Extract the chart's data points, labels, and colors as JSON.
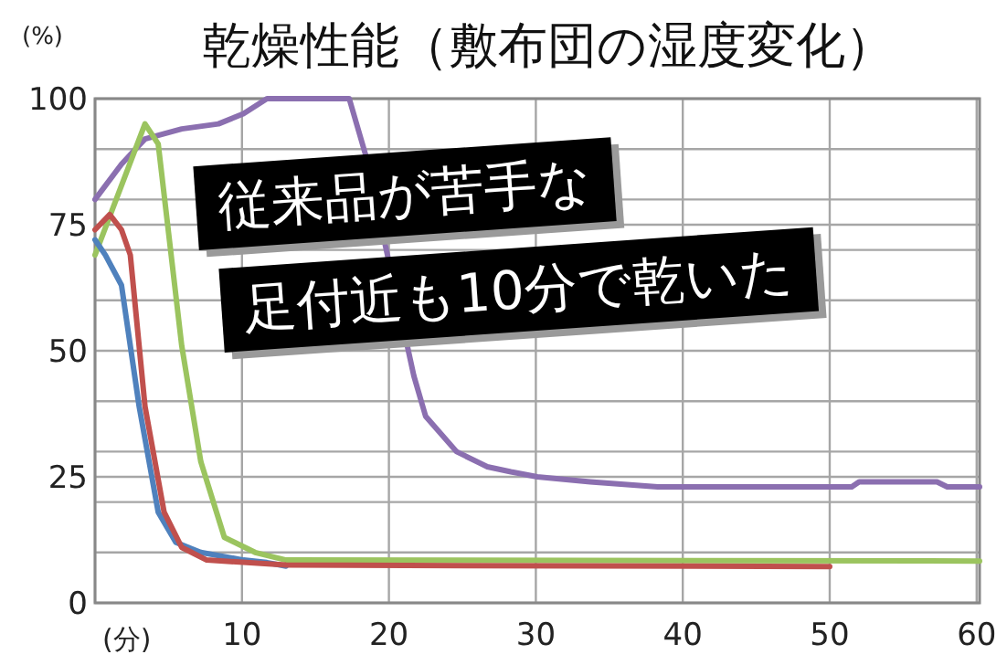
{
  "chart_data": {
    "type": "line",
    "title": "乾燥性能（敷布団の湿度変化）",
    "xlabel": "(分)",
    "ylabel": "(%)",
    "xlim": [
      0,
      60.2
    ],
    "ylim": [
      0,
      100
    ],
    "xticks": [
      {
        "value": 0,
        "label": null
      },
      10,
      20,
      30,
      40,
      50,
      60
    ],
    "yticks": [
      0,
      {
        "value": 10,
        "label": null
      },
      {
        "value": 20,
        "label": null
      },
      25,
      {
        "value": 30,
        "label": null
      },
      {
        "value": 40,
        "label": null
      },
      50,
      {
        "value": 60,
        "label": null
      },
      {
        "value": 70,
        "label": null
      },
      75,
      {
        "value": 80,
        "label": null
      },
      {
        "value": 90,
        "label": null
      },
      100
    ],
    "grid": true,
    "line_style": "solid",
    "marker": "none",
    "annotations": [
      "従来品が苦手な",
      "足付近も10分で乾いた"
    ],
    "series": [
      {
        "color": "#8b6fb0",
        "x": [
          0,
          1.8,
          3.4,
          5.9,
          8.4,
          10.1,
          11.7,
          17.3,
          18.4,
          21.7,
          22.5,
          24.6,
          26.7,
          28.3,
          30.1,
          33.7,
          38.3,
          51.5,
          52,
          57.3,
          58,
          60.2
        ],
        "values": [
          80,
          87,
          92,
          94,
          95,
          97,
          100,
          100,
          89,
          45,
          37,
          30,
          27,
          26,
          25,
          24,
          23,
          23,
          24,
          24,
          23,
          23
        ]
      },
      {
        "color": "#9bc45f",
        "x": [
          0,
          3.4,
          4.3,
          5.9,
          7.2,
          8.8,
          10.9,
          13,
          60.2
        ],
        "values": [
          69,
          95,
          91,
          51,
          28,
          13,
          10,
          8.5,
          8.3
        ]
      },
      {
        "color": "#4f81bd",
        "x": [
          0,
          0.7,
          1.8,
          3,
          4.3,
          5.5,
          7.2,
          10.1,
          11.7,
          13
        ],
        "values": [
          72,
          69,
          63,
          39,
          18,
          12,
          10,
          8.5,
          8,
          7.3
        ]
      },
      {
        "color": "#c0504d",
        "x": [
          0,
          1,
          1.8,
          2.4,
          3.4,
          4.7,
          5.9,
          7.6,
          13,
          50
        ],
        "values": [
          74,
          77,
          74,
          69,
          39,
          18,
          11,
          8.5,
          7.5,
          7.2
        ]
      }
    ]
  }
}
